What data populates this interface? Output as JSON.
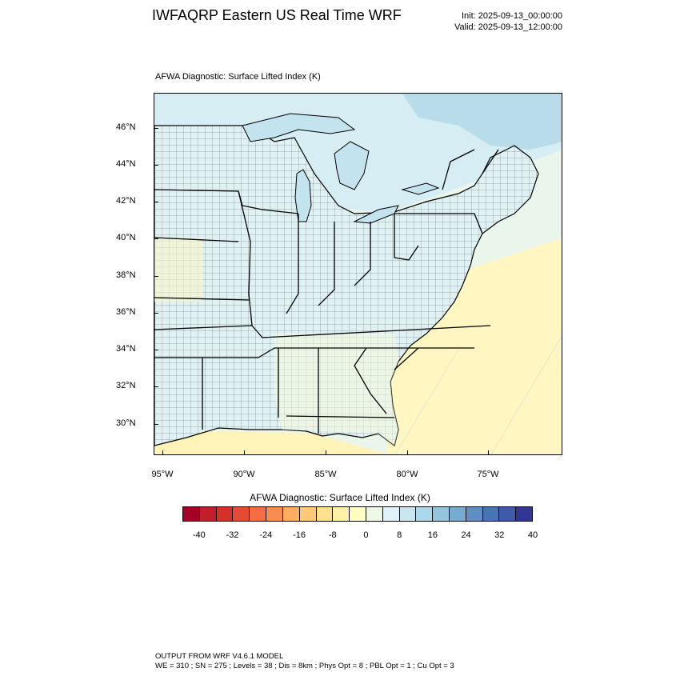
{
  "header": {
    "title": "IWFAQRP Eastern US Real Time WRF",
    "init": "Init: 2025-09-13_00:00:00",
    "valid": "Valid: 2025-09-13_12:00:00"
  },
  "plot": {
    "label": "AFWA Diagnostic: Surface Lifted Index   (K)",
    "lat_ticks": [
      "46°N",
      "44°N",
      "42°N",
      "40°N",
      "38°N",
      "36°N",
      "34°N",
      "32°N",
      "30°N"
    ],
    "lon_ticks": [
      "95°W",
      "90°W",
      "85°W",
      "80°W",
      "75°W"
    ]
  },
  "colorbar": {
    "title": "AFWA Diagnostic: Surface Lifted Index  (K)",
    "labels": [
      "-40",
      "-32",
      "-24",
      "-16",
      "-8",
      "0",
      "8",
      "16",
      "24",
      "32",
      "40"
    ],
    "colors": [
      "#a50026",
      "#c21d2b",
      "#d73027",
      "#e34c32",
      "#f46d43",
      "#f88d52",
      "#fdae61",
      "#fec878",
      "#fee090",
      "#fff1a8",
      "#ffffbf",
      "#eef8e4",
      "#e0f3f8",
      "#c7e6f0",
      "#abd9e9",
      "#92c5de",
      "#74add1",
      "#5e8fc4",
      "#4575b4",
      "#3f5ba8",
      "#313695"
    ]
  },
  "footer": {
    "line1": "OUTPUT FROM WRF V4.6.1 MODEL",
    "line2": "WE = 310 ; SN = 275 ; Levels = 38 ; Dis = 8km ; Phys Opt = 8 ; PBL Opt = 1 ; Cu Opt = 3"
  }
}
